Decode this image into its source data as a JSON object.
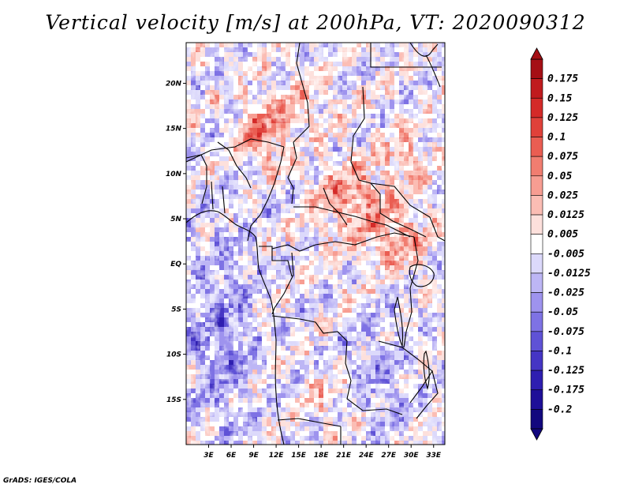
{
  "title": "Vertical velocity [m/s] at 200hPa, VT: 2020090312",
  "footer": "GrADS: IGES/COLA",
  "axes": {
    "lon_labels": [
      "3E",
      "6E",
      "9E",
      "12E",
      "15E",
      "18E",
      "21E",
      "24E",
      "27E",
      "30E",
      "33E"
    ],
    "lat_labels": [
      "20N",
      "15N",
      "10N",
      "5N",
      "EQ",
      "5S",
      "10S",
      "15S"
    ],
    "lon_range": [
      0,
      34.5
    ],
    "lat_range": [
      -20,
      24.5
    ]
  },
  "colorbar": {
    "levels": [
      "0.175",
      "0.15",
      "0.125",
      "0.1",
      "0.075",
      "0.05",
      "0.025",
      "0.0125",
      "0.005",
      "-0.005",
      "-0.0125",
      "-0.025",
      "-0.05",
      "-0.075",
      "-0.1",
      "-0.125",
      "-0.175",
      "-0.2"
    ],
    "colors": [
      "#a50f15",
      "#c01b1e",
      "#d42a28",
      "#e0413a",
      "#ea5d52",
      "#f17d70",
      "#f79d92",
      "#fbbdb4",
      "#fde0dc",
      "#ffffff",
      "#dcd9fb",
      "#bdb6f5",
      "#9e93ee",
      "#7e72e4",
      "#5f52d6",
      "#4535c4",
      "#2e1eb0",
      "#1e0f98",
      "#12087e"
    ]
  },
  "chart_data": {
    "type": "heatmap",
    "title": "Vertical velocity [m/s] at 200hPa, VT: 2020090312",
    "variable": "vertical velocity",
    "units": "m/s",
    "level": "200hPa",
    "valid_time": "2020090312",
    "x_ticks": [
      "3E",
      "6E",
      "9E",
      "12E",
      "15E",
      "18E",
      "21E",
      "24E",
      "27E",
      "30E",
      "33E"
    ],
    "y_ticks": [
      "20N",
      "15N",
      "10N",
      "5N",
      "EQ",
      "5S",
      "10S",
      "15S"
    ],
    "xlim": [
      0,
      34.5
    ],
    "ylim": [
      -20,
      24.5
    ],
    "contour_levels": [
      -0.2,
      -0.175,
      -0.125,
      -0.1,
      -0.075,
      -0.05,
      -0.025,
      -0.0125,
      -0.005,
      0.005,
      0.0125,
      0.025,
      0.05,
      0.075,
      0.1,
      0.125,
      0.15,
      0.175
    ]
  }
}
